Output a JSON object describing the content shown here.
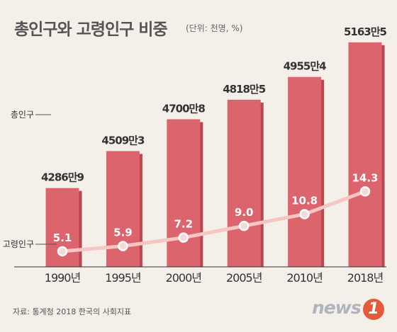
{
  "header": {
    "title": "총인구와 고령인구 비중",
    "unit": "(단위: 천명, %)"
  },
  "footer": {
    "source": "자료: 통계청 2018 한국의 사회지표",
    "logo_text": "news",
    "logo_badge": "1"
  },
  "colors": {
    "background": "#f4efe9",
    "bar": "#dc646c",
    "bar_shadow": "#b8474f",
    "line": "#f7c5c2",
    "marker_fill": "#f7d9d6",
    "bar_label": "#333333",
    "line_label": "#ffffff",
    "axis_label": "#333333"
  },
  "chart_data": {
    "type": "bar",
    "categories": [
      "1990년",
      "1995년",
      "2000년",
      "2005년",
      "2010년",
      "2018년"
    ],
    "series": [
      {
        "name": "총인구",
        "values": [
          42869,
          45093,
          47008,
          48185,
          49554,
          51635
        ],
        "labels": [
          "4286만9",
          "4509만3",
          "4700만8",
          "4818만5",
          "4955만4",
          "5163만5"
        ]
      },
      {
        "name": "고령인구",
        "type": "line",
        "values": [
          5.1,
          5.9,
          7.2,
          9.0,
          10.8,
          14.3
        ],
        "labels": [
          "5.1",
          "5.9",
          "7.2",
          "9.0",
          "10.8",
          "14.3"
        ]
      }
    ],
    "legend_position": "left",
    "grid": false
  }
}
